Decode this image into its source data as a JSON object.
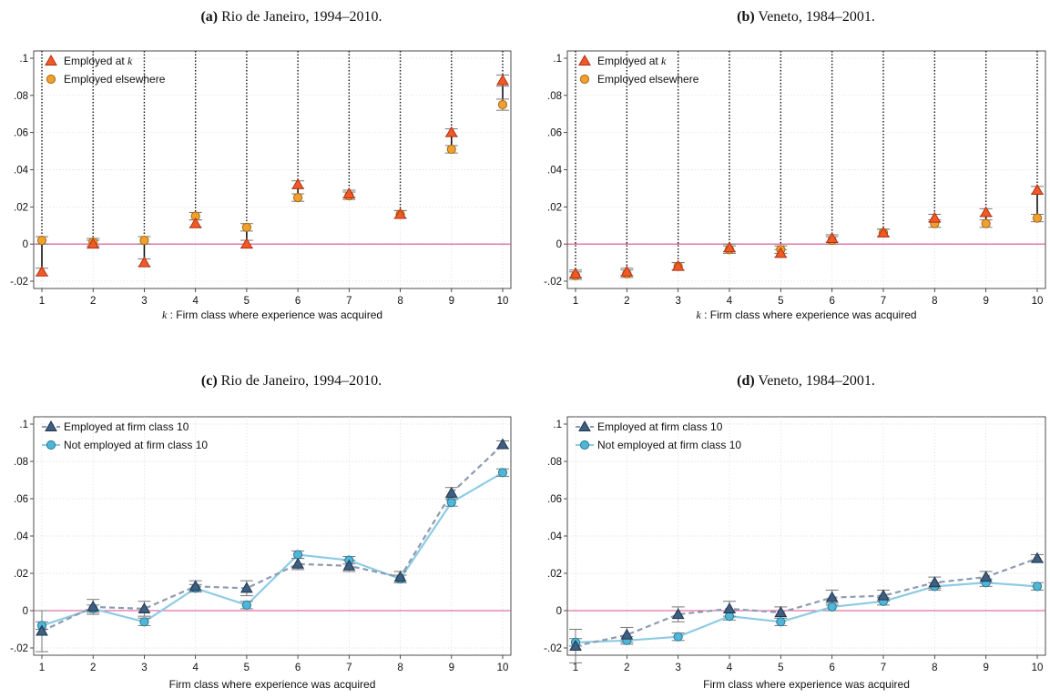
{
  "figure": {
    "panels": [
      {
        "id": "a",
        "tag": "(a)",
        "title": "Rio de Janeiro, 1994–2010.",
        "xlabel_k": "k",
        "xlabel": " : Firm class where experience was acquired",
        "legend": [
          "Employed at k",
          "Employed elsewhere"
        ]
      },
      {
        "id": "b",
        "tag": "(b)",
        "title": "Veneto, 1984–2001.",
        "xlabel_k": "k",
        "xlabel": " : Firm class where experience was acquired",
        "legend": [
          "Employed at k",
          "Employed elsewhere"
        ]
      },
      {
        "id": "c",
        "tag": "(c)",
        "title": "Rio de Janeiro, 1994–2010.",
        "xlabel": "Firm class where experience was acquired",
        "legend": [
          "Employed at firm class 10",
          "Not employed at firm class 10"
        ]
      },
      {
        "id": "d",
        "tag": "(d)",
        "title": "Veneto, 1984–2001.",
        "xlabel": "Firm class where experience was acquired",
        "legend": [
          "Employed at firm class 10",
          "Not employed at firm class 10"
        ]
      }
    ]
  },
  "colors": {
    "triangle_orange": "#f05a28",
    "circle_orange": "#f0a030",
    "triangle_navy": "#3f5f80",
    "circle_cyan": "#4fb6d8",
    "zero_line": "#d94f8c",
    "grid": "#dddddd",
    "dotted_line": "#111111",
    "dashed_line": "#8c9bb0",
    "solid_line": "#8ecbe4"
  },
  "chart_data": [
    {
      "type": "scatter",
      "panel": "a",
      "x": [
        1,
        2,
        3,
        4,
        5,
        6,
        7,
        8,
        9,
        10
      ],
      "ylim": [
        -0.02,
        0.1
      ],
      "yticks": [
        -0.02,
        0,
        0.02,
        0.04,
        0.06,
        0.08,
        0.1
      ],
      "ytick_labels": [
        "-.02",
        "0",
        ".02",
        ".04",
        ".06",
        ".08",
        ".1"
      ],
      "xticks": [
        "1",
        "2",
        "3",
        "4",
        "5",
        "6",
        "7",
        "8",
        "9",
        "10"
      ],
      "grid": true,
      "legend_position": "top-left",
      "series": [
        {
          "name": "Employed at k",
          "marker": "triangle",
          "values": [
            -0.015,
            0.0,
            -0.01,
            0.011,
            0.0,
            0.032,
            0.027,
            0.016,
            0.06,
            0.088
          ],
          "ci": [
            0.002,
            0.002,
            0.002,
            0.002,
            0.002,
            0.002,
            0.002,
            0.002,
            0.002,
            0.003
          ]
        },
        {
          "name": "Employed elsewhere",
          "marker": "circle",
          "values": [
            0.002,
            0.001,
            0.002,
            0.015,
            0.009,
            0.025,
            0.026,
            0.016,
            0.051,
            0.075
          ],
          "ci": [
            0.002,
            0.002,
            0.002,
            0.002,
            0.002,
            0.002,
            0.002,
            0.002,
            0.002,
            0.003
          ]
        }
      ]
    },
    {
      "type": "scatter",
      "panel": "b",
      "x": [
        1,
        2,
        3,
        4,
        5,
        6,
        7,
        8,
        9,
        10
      ],
      "ylim": [
        -0.02,
        0.1
      ],
      "yticks": [
        -0.02,
        0,
        0.02,
        0.04,
        0.06,
        0.08,
        0.1
      ],
      "ytick_labels": [
        "-.02",
        "0",
        ".02",
        ".04",
        ".06",
        ".08",
        ".1"
      ],
      "xticks": [
        "1",
        "2",
        "3",
        "4",
        "5",
        "6",
        "7",
        "8",
        "9",
        "10"
      ],
      "grid": true,
      "legend_position": "top-left",
      "series": [
        {
          "name": "Employed at k",
          "marker": "triangle",
          "values": [
            -0.016,
            -0.015,
            -0.012,
            -0.002,
            -0.005,
            0.003,
            0.006,
            0.014,
            0.017,
            0.029
          ],
          "ci": [
            0.002,
            0.002,
            0.002,
            0.002,
            0.002,
            0.002,
            0.002,
            0.002,
            0.002,
            0.002
          ]
        },
        {
          "name": "Employed elsewhere",
          "marker": "circle",
          "values": [
            -0.017,
            -0.016,
            -0.012,
            -0.003,
            -0.003,
            0.002,
            0.006,
            0.011,
            0.011,
            0.014
          ],
          "ci": [
            0.002,
            0.002,
            0.002,
            0.002,
            0.002,
            0.002,
            0.002,
            0.002,
            0.002,
            0.002
          ]
        }
      ]
    },
    {
      "type": "line",
      "panel": "c",
      "x": [
        1,
        2,
        3,
        4,
        5,
        6,
        7,
        8,
        9,
        10
      ],
      "ylim": [
        -0.02,
        0.1
      ],
      "yticks": [
        -0.02,
        0,
        0.02,
        0.04,
        0.06,
        0.08,
        0.1
      ],
      "ytick_labels": [
        "-.02",
        "0",
        ".02",
        ".04",
        ".06",
        ".08",
        ".1"
      ],
      "xticks": [
        "1",
        "2",
        "3",
        "4",
        "5",
        "6",
        "7",
        "8",
        "9",
        "10"
      ],
      "grid": true,
      "legend_position": "top-left",
      "series": [
        {
          "name": "Employed at firm class 10",
          "marker": "triangle",
          "line": "dashed",
          "values": [
            -0.011,
            0.002,
            0.001,
            0.013,
            0.012,
            0.025,
            0.024,
            0.018,
            0.063,
            0.089
          ],
          "ci": [
            0.011,
            0.004,
            0.004,
            0.003,
            0.004,
            0.003,
            0.003,
            0.003,
            0.003,
            0.002
          ]
        },
        {
          "name": "Not employed at firm class 10",
          "marker": "circle",
          "line": "solid",
          "values": [
            -0.008,
            0.001,
            -0.006,
            0.012,
            0.003,
            0.03,
            0.027,
            0.017,
            0.058,
            0.074
          ],
          "ci": [
            0.002,
            0.002,
            0.002,
            0.002,
            0.002,
            0.002,
            0.002,
            0.002,
            0.002,
            0.002
          ]
        }
      ]
    },
    {
      "type": "line",
      "panel": "d",
      "x": [
        1,
        2,
        3,
        4,
        5,
        6,
        7,
        8,
        9,
        10
      ],
      "ylim": [
        -0.02,
        0.1
      ],
      "yticks": [
        -0.02,
        0,
        0.02,
        0.04,
        0.06,
        0.08,
        0.1
      ],
      "ytick_labels": [
        "-.02",
        "0",
        ".02",
        ".04",
        ".06",
        ".08",
        ".1"
      ],
      "xticks": [
        "1",
        "2",
        "3",
        "4",
        "5",
        "6",
        "7",
        "8",
        "9",
        "10"
      ],
      "grid": true,
      "legend_position": "top-left",
      "series": [
        {
          "name": "Employed at firm class 10",
          "marker": "triangle",
          "line": "dashed",
          "values": [
            -0.019,
            -0.013,
            -0.002,
            0.001,
            -0.001,
            0.007,
            0.008,
            0.015,
            0.018,
            0.028
          ],
          "ci": [
            0.009,
            0.004,
            0.004,
            0.004,
            0.003,
            0.004,
            0.003,
            0.003,
            0.003,
            0.002
          ]
        },
        {
          "name": "Not employed at firm class 10",
          "marker": "circle",
          "line": "solid",
          "values": [
            -0.017,
            -0.016,
            -0.014,
            -0.003,
            -0.006,
            0.002,
            0.005,
            0.013,
            0.015,
            0.013
          ],
          "ci": [
            0.002,
            0.002,
            0.002,
            0.002,
            0.002,
            0.002,
            0.002,
            0.002,
            0.002,
            0.002
          ]
        }
      ]
    }
  ]
}
